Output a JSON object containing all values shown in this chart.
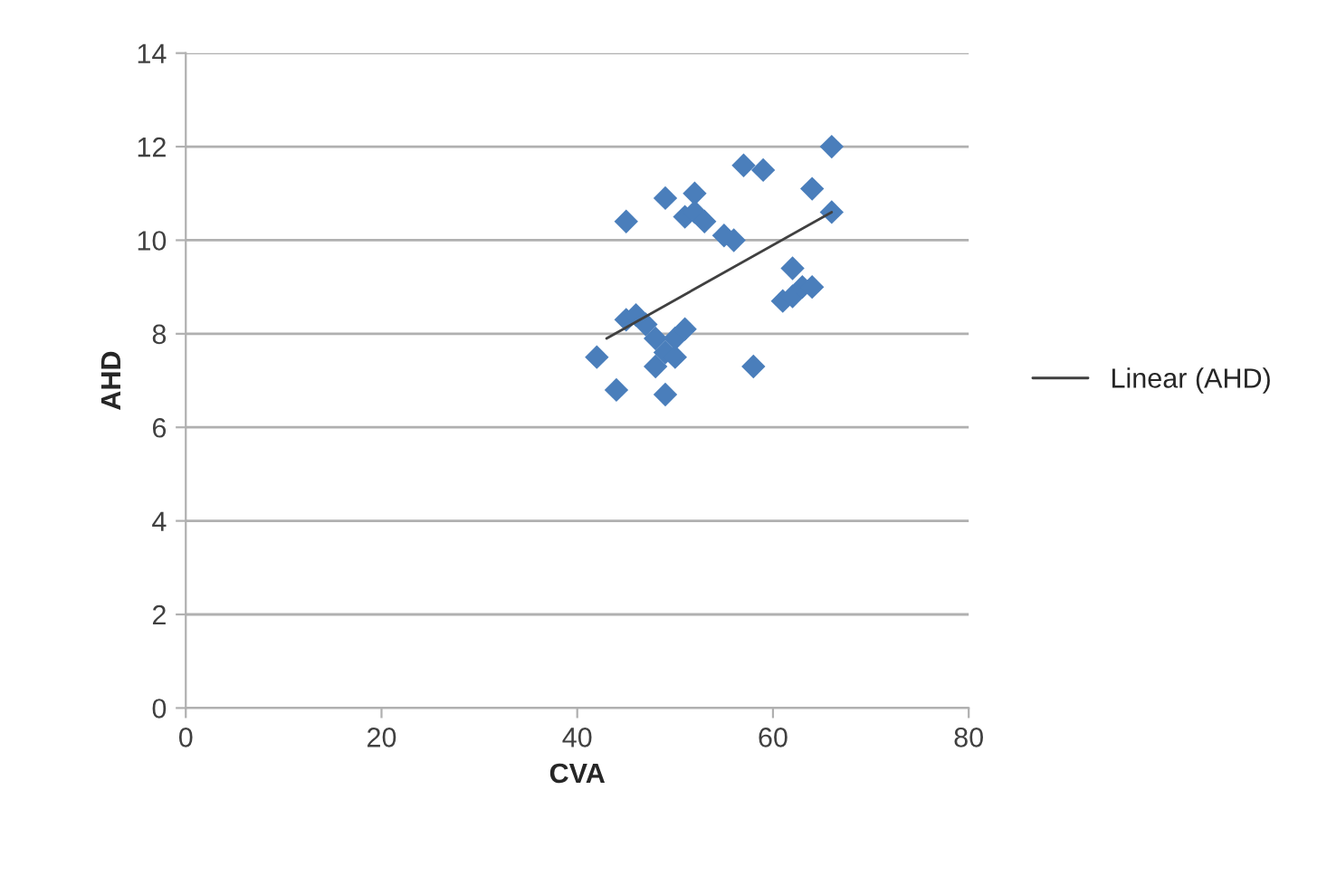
{
  "chart_data": {
    "type": "scatter",
    "xlabel": "CVA",
    "ylabel": "AHD",
    "xlim": [
      0,
      80
    ],
    "xticks": [
      0,
      20,
      40,
      60,
      80
    ],
    "ylim": [
      0,
      14
    ],
    "yticks": [
      0,
      2,
      4,
      6,
      8,
      10,
      12,
      14
    ],
    "grid": "y",
    "legend": "right",
    "marker": "diamond",
    "series": [
      {
        "color": "#4a7ebb",
        "x": [
          42,
          44,
          45,
          45,
          46,
          47,
          48,
          48,
          49,
          49,
          49,
          50,
          50,
          51,
          51,
          52,
          52,
          53,
          55,
          56,
          57,
          59,
          58,
          61,
          62,
          62,
          63,
          64,
          64,
          66,
          66
        ],
        "values": [
          7.5,
          6.8,
          8.3,
          10.4,
          8.4,
          8.2,
          7.9,
          7.3,
          7.6,
          6.7,
          10.9,
          7.5,
          7.9,
          8.1,
          10.5,
          11.0,
          10.6,
          10.4,
          10.1,
          10.0,
          11.6,
          11.5,
          7.3,
          8.7,
          9.4,
          8.8,
          9.0,
          9.0,
          11.1,
          12.0,
          10.6
        ]
      },
      {
        "type": "line",
        "name": "Linear (AHD)",
        "color": "#404040",
        "marker": "none",
        "x": [
          43,
          66
        ],
        "values": [
          7.9,
          10.6
        ]
      }
    ]
  }
}
